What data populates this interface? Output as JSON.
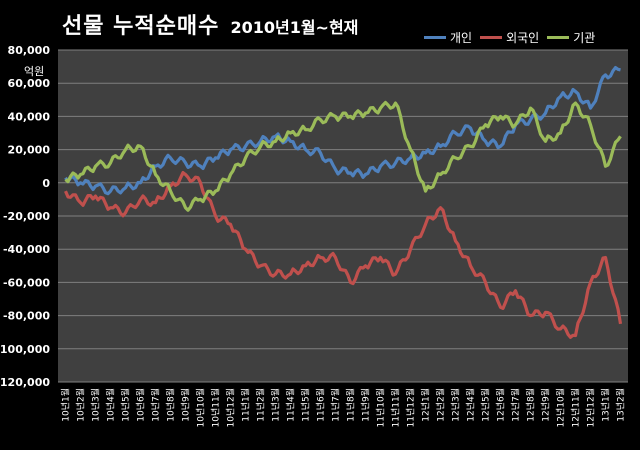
{
  "chart_data": {
    "type": "line",
    "title": "선물  누적순매수",
    "subtitle": "2010년1월~현재",
    "unit_label": "억원",
    "ylim": [
      -120000,
      80000
    ],
    "yticks": [
      "80,000",
      "60,000",
      "40,000",
      "20,000",
      "0",
      "-20,000",
      "-40,000",
      "-60,000",
      "-80,000",
      "-100,000",
      "-120,000"
    ],
    "categories": [
      "10년1월",
      "10년2월",
      "10년3월",
      "10년4월",
      "10년5월",
      "10년6월",
      "10년7월",
      "10년8월",
      "10년9월",
      "10년10월",
      "10년11월",
      "10년12월",
      "11년1월",
      "11년2월",
      "11년3월",
      "11년4월",
      "11년5월",
      "11년6월",
      "11년7월",
      "11년8월",
      "11년9월",
      "11년10월",
      "11년11월",
      "11년12월",
      "12년1월",
      "12년2월",
      "12년3월",
      "12년4월",
      "12년5월",
      "12년6월",
      "12년7월",
      "12년8월",
      "12년9월",
      "12년10월",
      "12년11월",
      "12년12월",
      "13년1월",
      "13년2월"
    ],
    "grid": true,
    "legend_position": "top-right",
    "background": "#404040",
    "series": [
      {
        "name": "개인",
        "color": "#4f81bd",
        "values": [
          3000,
          0,
          -2000,
          -5000,
          -3000,
          0,
          10000,
          15000,
          12000,
          10000,
          15000,
          20000,
          22000,
          25000,
          28000,
          25000,
          20000,
          18000,
          8000,
          6000,
          5000,
          10000,
          12000,
          15000,
          18000,
          22000,
          30000,
          33000,
          25000,
          22000,
          35000,
          38000,
          42000,
          52000,
          55000,
          45000,
          65000,
          68000
        ]
      },
      {
        "name": "외국인",
        "color": "#c0504d",
        "values": [
          -5000,
          -12000,
          -8000,
          -15000,
          -18000,
          -10000,
          -12000,
          -2000,
          5000,
          0,
          -20000,
          -25000,
          -40000,
          -50000,
          -55000,
          -55000,
          -50000,
          -45000,
          -45000,
          -60000,
          -50000,
          -45000,
          -55000,
          -40000,
          -25000,
          -15000,
          -35000,
          -50000,
          -60000,
          -75000,
          -65000,
          -80000,
          -78000,
          -88000,
          -92000,
          -60000,
          -45000,
          -85000
        ]
      },
      {
        "name": "기관",
        "color": "#9bbb59",
        "values": [
          2000,
          5000,
          10000,
          12000,
          20000,
          22000,
          5000,
          -5000,
          -15000,
          -10000,
          -5000,
          5000,
          15000,
          22000,
          25000,
          30000,
          32000,
          38000,
          40000,
          40000,
          42000,
          45000,
          48000,
          20000,
          -5000,
          5000,
          15000,
          22000,
          35000,
          40000,
          35000,
          45000,
          25000,
          30000,
          48000,
          35000,
          10000,
          28000
        ]
      }
    ]
  }
}
